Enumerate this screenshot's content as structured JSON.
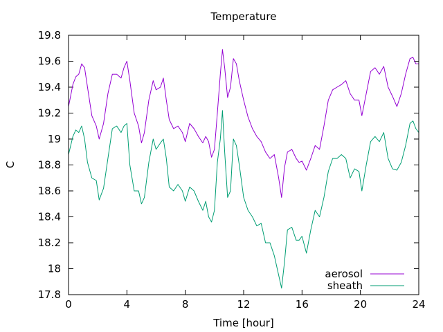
{
  "chart_data": {
    "type": "line",
    "title": "Temperature",
    "xlabel": "Time [hour]",
    "ylabel": "C",
    "xlim": [
      0,
      24
    ],
    "ylim": [
      17.8,
      19.8
    ],
    "xticks": [
      0,
      4,
      8,
      12,
      16,
      20,
      24
    ],
    "xtick_labels": [
      "0",
      "4",
      "8",
      "12",
      "16",
      "20",
      "24"
    ],
    "yticks": [
      17.8,
      18,
      18.2,
      18.4,
      18.6,
      18.8,
      19,
      19.2,
      19.4,
      19.6,
      19.8
    ],
    "ytick_labels": [
      "17.8",
      "18",
      "18.2",
      "18.4",
      "18.6",
      "18.8",
      "19",
      "19.2",
      "19.4",
      "19.6",
      "19.8"
    ],
    "grid": false,
    "legend_position": "bottom-right",
    "series": [
      {
        "name": "aerosol",
        "color": "#9400d3",
        "points": [
          [
            0,
            19.25
          ],
          [
            0.3,
            19.42
          ],
          [
            0.5,
            19.48
          ],
          [
            0.7,
            19.5
          ],
          [
            0.9,
            19.58
          ],
          [
            1.1,
            19.55
          ],
          [
            1.3,
            19.4
          ],
          [
            1.6,
            19.18
          ],
          [
            1.9,
            19.1
          ],
          [
            2.1,
            19.0
          ],
          [
            2.4,
            19.12
          ],
          [
            2.7,
            19.35
          ],
          [
            3.0,
            19.5
          ],
          [
            3.3,
            19.5
          ],
          [
            3.6,
            19.47
          ],
          [
            3.8,
            19.55
          ],
          [
            4.0,
            19.6
          ],
          [
            4.2,
            19.45
          ],
          [
            4.5,
            19.2
          ],
          [
            4.8,
            19.1
          ],
          [
            5.0,
            18.97
          ],
          [
            5.2,
            19.05
          ],
          [
            5.5,
            19.3
          ],
          [
            5.8,
            19.45
          ],
          [
            6.0,
            19.38
          ],
          [
            6.3,
            19.4
          ],
          [
            6.5,
            19.47
          ],
          [
            6.7,
            19.3
          ],
          [
            6.9,
            19.15
          ],
          [
            7.2,
            19.08
          ],
          [
            7.5,
            19.1
          ],
          [
            7.8,
            19.05
          ],
          [
            8.0,
            18.98
          ],
          [
            8.3,
            19.12
          ],
          [
            8.6,
            19.08
          ],
          [
            8.9,
            19.02
          ],
          [
            9.2,
            18.97
          ],
          [
            9.4,
            19.02
          ],
          [
            9.6,
            18.98
          ],
          [
            9.8,
            18.86
          ],
          [
            10.0,
            18.92
          ],
          [
            10.2,
            19.2
          ],
          [
            10.4,
            19.5
          ],
          [
            10.55,
            19.69
          ],
          [
            10.7,
            19.55
          ],
          [
            10.9,
            19.32
          ],
          [
            11.1,
            19.4
          ],
          [
            11.3,
            19.62
          ],
          [
            11.5,
            19.58
          ],
          [
            11.7,
            19.45
          ],
          [
            12.0,
            19.3
          ],
          [
            12.3,
            19.17
          ],
          [
            12.6,
            19.08
          ],
          [
            12.9,
            19.02
          ],
          [
            13.2,
            18.98
          ],
          [
            13.5,
            18.9
          ],
          [
            13.8,
            18.85
          ],
          [
            14.1,
            18.88
          ],
          [
            14.4,
            18.7
          ],
          [
            14.6,
            18.55
          ],
          [
            14.8,
            18.78
          ],
          [
            15.0,
            18.9
          ],
          [
            15.3,
            18.92
          ],
          [
            15.6,
            18.85
          ],
          [
            15.8,
            18.82
          ],
          [
            16.0,
            18.83
          ],
          [
            16.3,
            18.76
          ],
          [
            16.6,
            18.85
          ],
          [
            16.9,
            18.95
          ],
          [
            17.2,
            18.92
          ],
          [
            17.5,
            19.1
          ],
          [
            17.8,
            19.3
          ],
          [
            18.1,
            19.38
          ],
          [
            18.4,
            19.4
          ],
          [
            18.7,
            19.42
          ],
          [
            19.0,
            19.45
          ],
          [
            19.3,
            19.35
          ],
          [
            19.6,
            19.3
          ],
          [
            19.9,
            19.3
          ],
          [
            20.1,
            19.18
          ],
          [
            20.4,
            19.35
          ],
          [
            20.7,
            19.52
          ],
          [
            21.0,
            19.55
          ],
          [
            21.3,
            19.5
          ],
          [
            21.6,
            19.56
          ],
          [
            21.9,
            19.4
          ],
          [
            22.2,
            19.33
          ],
          [
            22.5,
            19.25
          ],
          [
            22.8,
            19.35
          ],
          [
            23.1,
            19.5
          ],
          [
            23.4,
            19.62
          ],
          [
            23.6,
            19.63
          ],
          [
            23.8,
            19.58
          ],
          [
            24.0,
            19.58
          ]
        ]
      },
      {
        "name": "sheath",
        "color": "#009e73",
        "points": [
          [
            0,
            18.88
          ],
          [
            0.3,
            19.02
          ],
          [
            0.5,
            19.07
          ],
          [
            0.7,
            19.05
          ],
          [
            0.9,
            19.1
          ],
          [
            1.1,
            19.0
          ],
          [
            1.3,
            18.82
          ],
          [
            1.6,
            18.7
          ],
          [
            1.9,
            18.68
          ],
          [
            2.1,
            18.53
          ],
          [
            2.4,
            18.62
          ],
          [
            2.7,
            18.85
          ],
          [
            3.0,
            19.08
          ],
          [
            3.3,
            19.1
          ],
          [
            3.6,
            19.05
          ],
          [
            3.8,
            19.1
          ],
          [
            4.0,
            19.12
          ],
          [
            4.2,
            18.8
          ],
          [
            4.5,
            18.6
          ],
          [
            4.8,
            18.6
          ],
          [
            5.0,
            18.5
          ],
          [
            5.2,
            18.55
          ],
          [
            5.5,
            18.82
          ],
          [
            5.8,
            19.0
          ],
          [
            6.0,
            18.92
          ],
          [
            6.3,
            18.97
          ],
          [
            6.5,
            19.0
          ],
          [
            6.7,
            18.85
          ],
          [
            6.9,
            18.63
          ],
          [
            7.2,
            18.6
          ],
          [
            7.5,
            18.65
          ],
          [
            7.8,
            18.6
          ],
          [
            8.0,
            18.52
          ],
          [
            8.3,
            18.63
          ],
          [
            8.6,
            18.6
          ],
          [
            8.9,
            18.52
          ],
          [
            9.2,
            18.45
          ],
          [
            9.4,
            18.52
          ],
          [
            9.6,
            18.4
          ],
          [
            9.8,
            18.36
          ],
          [
            10.0,
            18.45
          ],
          [
            10.2,
            18.82
          ],
          [
            10.4,
            19.0
          ],
          [
            10.55,
            19.22
          ],
          [
            10.7,
            18.9
          ],
          [
            10.9,
            18.55
          ],
          [
            11.1,
            18.6
          ],
          [
            11.3,
            19.0
          ],
          [
            11.5,
            18.95
          ],
          [
            11.7,
            18.8
          ],
          [
            12.0,
            18.55
          ],
          [
            12.3,
            18.45
          ],
          [
            12.6,
            18.4
          ],
          [
            12.9,
            18.33
          ],
          [
            13.2,
            18.35
          ],
          [
            13.5,
            18.2
          ],
          [
            13.8,
            18.2
          ],
          [
            14.1,
            18.1
          ],
          [
            14.4,
            17.95
          ],
          [
            14.6,
            17.85
          ],
          [
            14.8,
            18.05
          ],
          [
            15.0,
            18.3
          ],
          [
            15.3,
            18.32
          ],
          [
            15.6,
            18.22
          ],
          [
            15.8,
            18.22
          ],
          [
            16.0,
            18.25
          ],
          [
            16.3,
            18.12
          ],
          [
            16.6,
            18.3
          ],
          [
            16.9,
            18.45
          ],
          [
            17.2,
            18.4
          ],
          [
            17.5,
            18.55
          ],
          [
            17.8,
            18.75
          ],
          [
            18.1,
            18.85
          ],
          [
            18.4,
            18.85
          ],
          [
            18.7,
            18.88
          ],
          [
            19.0,
            18.85
          ],
          [
            19.3,
            18.7
          ],
          [
            19.6,
            18.77
          ],
          [
            19.9,
            18.75
          ],
          [
            20.1,
            18.6
          ],
          [
            20.4,
            18.8
          ],
          [
            20.7,
            18.98
          ],
          [
            21.0,
            19.02
          ],
          [
            21.3,
            18.98
          ],
          [
            21.6,
            19.05
          ],
          [
            21.9,
            18.85
          ],
          [
            22.2,
            18.77
          ],
          [
            22.5,
            18.76
          ],
          [
            22.8,
            18.82
          ],
          [
            23.1,
            18.95
          ],
          [
            23.4,
            19.12
          ],
          [
            23.6,
            19.14
          ],
          [
            23.8,
            19.08
          ],
          [
            24.0,
            19.05
          ]
        ]
      }
    ]
  }
}
